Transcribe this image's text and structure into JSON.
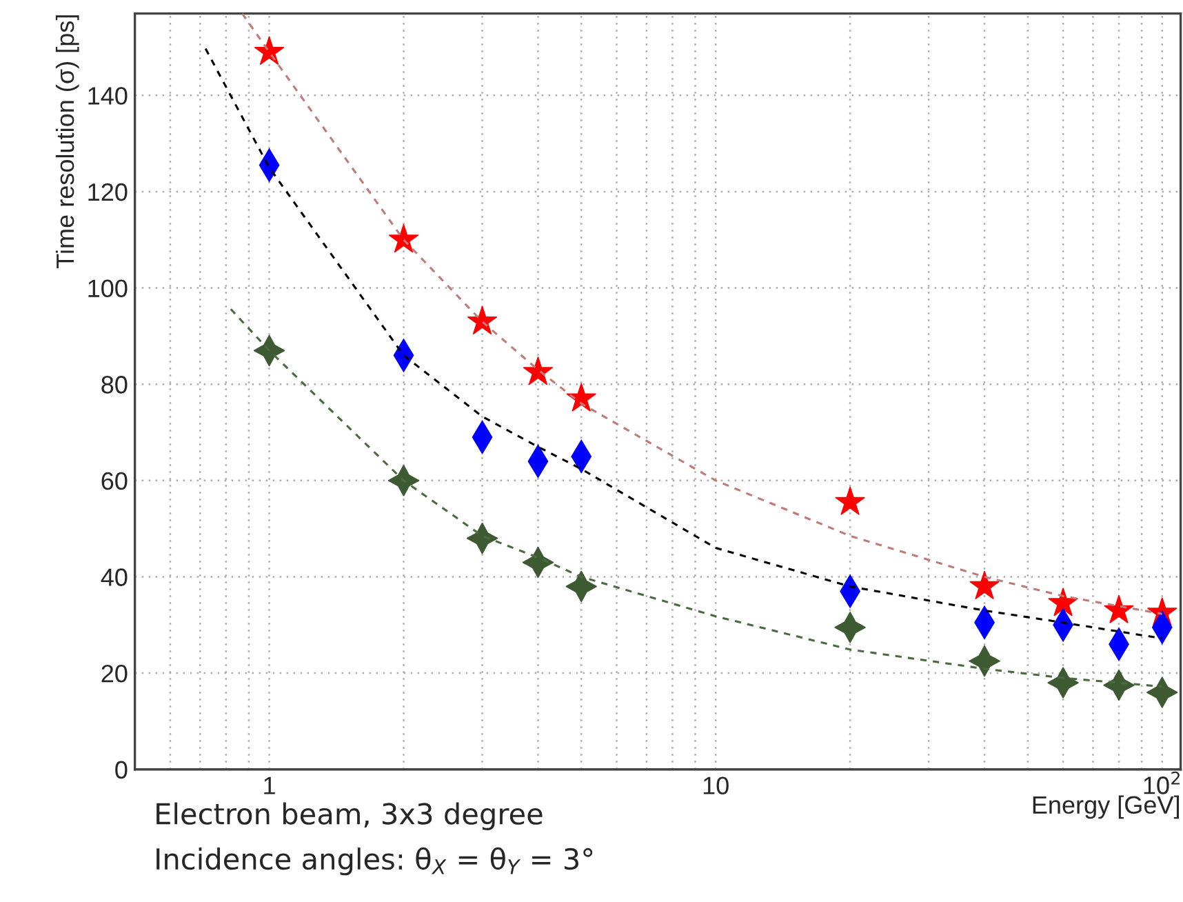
{
  "chart_data": {
    "type": "scatter",
    "xlabel": "Energy [GeV]",
    "ylabel": "Time resolution (σ) [ps]",
    "log": "x",
    "grid": true,
    "xlim": [
      0.5,
      110
    ],
    "xticks": [
      1,
      10,
      {
        "value": 100,
        "label": "10$^{2}$"
      }
    ],
    "ylim": [
      0,
      157
    ],
    "yticks": [
      0,
      20,
      40,
      60,
      80,
      100,
      120,
      140
    ],
    "series": [
      {
        "type": "line",
        "line_style": "dashed",
        "marker": "none",
        "color": "#c07a7a",
        "x": [
          0.87,
          1,
          2,
          3,
          4,
          5,
          10,
          20,
          40,
          60,
          100
        ],
        "values": [
          157,
          149,
          110,
          93,
          83,
          76,
          60,
          48.5,
          40,
          36,
          32.3
        ]
      },
      {
        "type": "line",
        "line_style": "dashed",
        "marker": "none",
        "color": "#000000",
        "x": [
          0.72,
          1,
          2,
          3,
          4,
          5,
          10,
          20,
          40,
          60,
          100
        ],
        "values": [
          149.7,
          125,
          86,
          73.3,
          67,
          62.4,
          46,
          38,
          33,
          30.5,
          27.2
        ]
      },
      {
        "type": "line",
        "line_style": "dashed",
        "marker": "none",
        "color": "#4a6a40",
        "x": [
          0.82,
          1,
          2,
          3,
          4,
          5,
          10,
          20,
          40,
          60,
          100
        ],
        "values": [
          95.6,
          87,
          60,
          48.5,
          44,
          40,
          31.8,
          24.9,
          20.9,
          19,
          17.2
        ]
      },
      {
        "marker": "star",
        "color": "#ff0000",
        "x": [
          1,
          2,
          3,
          4,
          5,
          20,
          40,
          60,
          80,
          100
        ],
        "values": [
          149,
          110,
          93,
          82.5,
          77,
          55.5,
          38,
          34.5,
          33,
          32.5
        ]
      },
      {
        "marker": "diamond",
        "color": "#0000ff",
        "x": [
          1,
          2,
          3,
          4,
          5,
          20,
          40,
          60,
          80,
          100
        ],
        "values": [
          125.5,
          86,
          69,
          64,
          65,
          37,
          30.5,
          30,
          26,
          29.5
        ]
      },
      {
        "marker": "cross",
        "color": "#3d5a32",
        "x": [
          1,
          2,
          3,
          4,
          5,
          20,
          40,
          60,
          80,
          100
        ],
        "values": [
          87,
          60,
          48,
          43,
          38,
          29.5,
          22.5,
          18,
          17.5,
          16
        ]
      }
    ],
    "annotations": [
      "Electron beam, 3x3 degree",
      "Incidence angles: θ$_{X}$ = θ$_{Y}$ = 3°"
    ]
  }
}
